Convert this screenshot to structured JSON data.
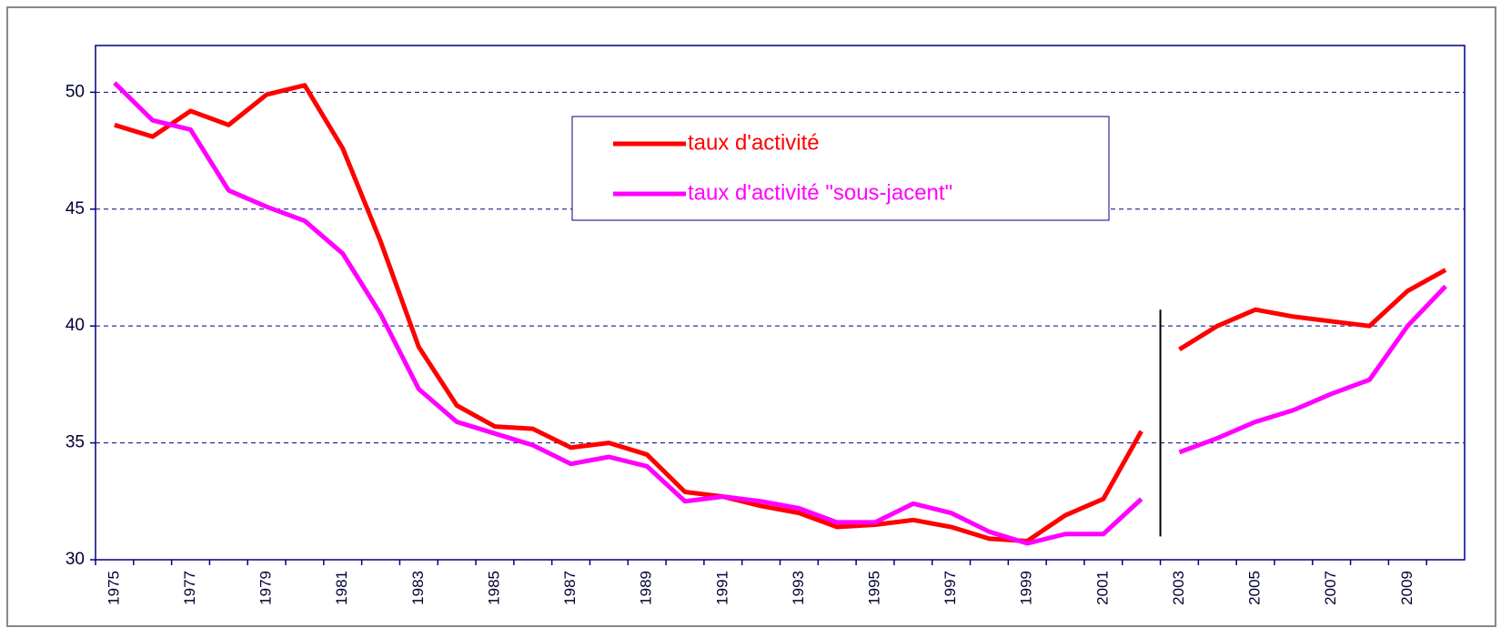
{
  "chart_data": {
    "type": "line",
    "categories": [
      "1975",
      null,
      "1977",
      null,
      "1979",
      null,
      "1981",
      null,
      "1983",
      null,
      "1985",
      null,
      "1987",
      null,
      "1989",
      null,
      "1991",
      null,
      "1993",
      null,
      "1995",
      null,
      "1997",
      null,
      "1999",
      null,
      "2001",
      null,
      "2003",
      null,
      "2005",
      null,
      "2007",
      null,
      "2009",
      null
    ],
    "series": [
      {
        "name": "taux d'activité",
        "color": "#ff0000",
        "values": [
          48.6,
          48.1,
          49.2,
          48.6,
          49.9,
          50.3,
          47.6,
          43.6,
          39.1,
          36.6,
          35.7,
          35.6,
          34.8,
          35.0,
          34.5,
          32.9,
          32.7,
          32.3,
          32.0,
          31.4,
          31.5,
          31.7,
          31.4,
          30.9,
          30.8,
          31.9,
          32.6,
          35.5,
          39.0,
          40.0,
          40.7,
          40.4,
          40.2,
          40.0,
          41.5,
          42.4
        ]
      },
      {
        "name": "taux d'activité \"sous-jacent\"",
        "color": "#ff00ff",
        "values": [
          50.4,
          48.8,
          48.4,
          45.8,
          45.1,
          44.5,
          43.1,
          40.5,
          37.3,
          35.9,
          35.4,
          34.9,
          34.1,
          34.4,
          34.0,
          32.5,
          32.7,
          32.5,
          32.2,
          31.6,
          31.6,
          32.4,
          32.0,
          31.2,
          30.7,
          31.1,
          31.1,
          32.6,
          34.6,
          35.2,
          35.9,
          36.4,
          37.1,
          37.7,
          40.0,
          41.7
        ]
      }
    ],
    "segment_break_index": 28,
    "ylim": [
      30,
      52
    ],
    "yticks": [
      30,
      35,
      40,
      45,
      50
    ],
    "grid": true,
    "legend": "top"
  }
}
